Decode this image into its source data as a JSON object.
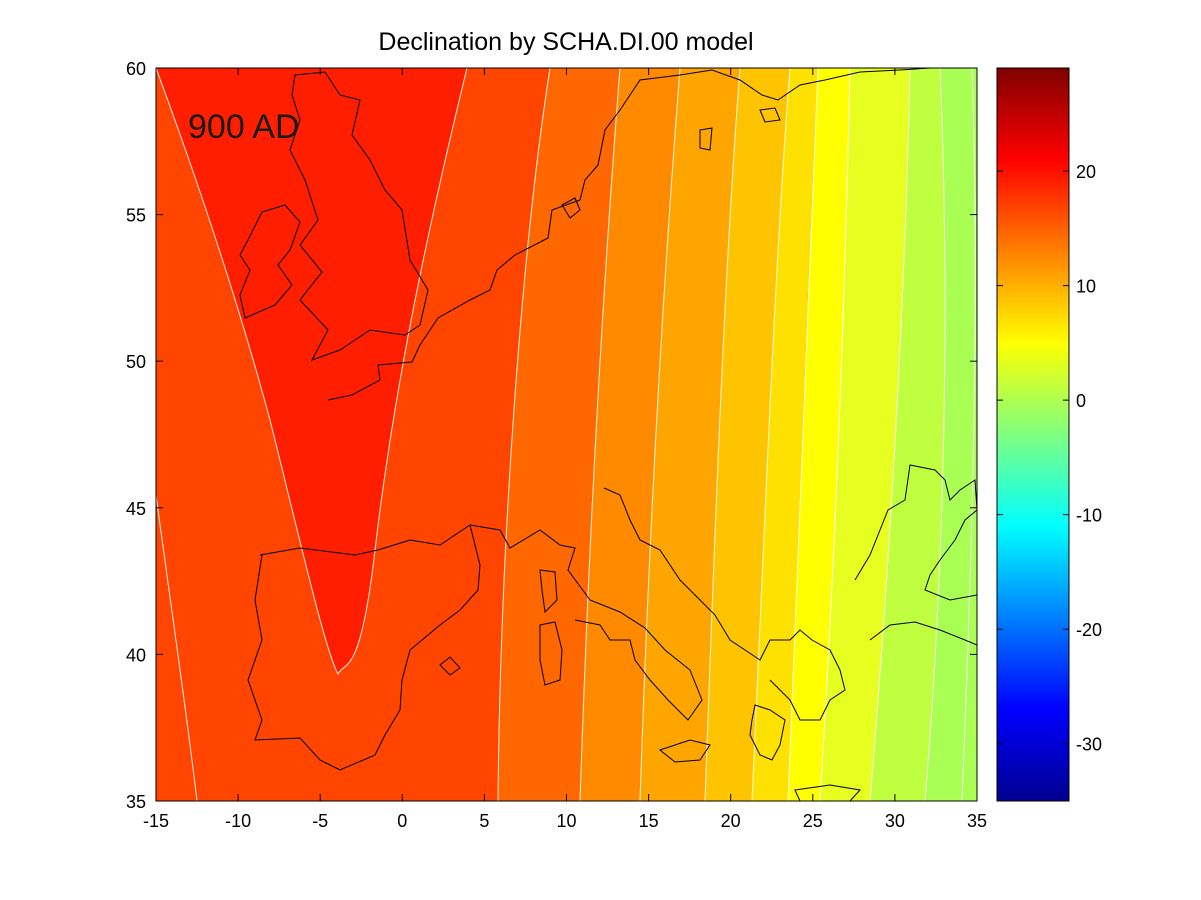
{
  "chart_data": {
    "type": "contour map",
    "title": "Declination by SCHA.DI.00 model",
    "annotation": "900 AD",
    "xlim": [
      -15,
      35
    ],
    "ylim": [
      35,
      60
    ],
    "x_ticks": [
      -15,
      -10,
      -5,
      0,
      5,
      10,
      15,
      20,
      25,
      30,
      35
    ],
    "y_ticks": [
      35,
      40,
      45,
      50,
      55,
      60
    ],
    "colorbar": {
      "range": [
        -35,
        29
      ],
      "ticks": [
        20,
        10,
        0,
        -10,
        -20,
        -30
      ],
      "colormap": "jet"
    },
    "field_bands": [
      {
        "name": "band-20-25",
        "value": 22
      },
      {
        "name": "band-17-20",
        "value": 18.5
      },
      {
        "name": "band-14-17",
        "value": 15.5
      },
      {
        "name": "band-11-14",
        "value": 12.5
      },
      {
        "name": "band-8-11",
        "value": 9.5
      },
      {
        "name": "band-5-8",
        "value": 6.5
      },
      {
        "name": "band-2-5",
        "value": 3.5
      },
      {
        "name": "band-0-2",
        "value": 1
      },
      {
        "name": "band-neg",
        "value": -1.5
      }
    ],
    "contour_lines_x": [
      -15,
      -8,
      2,
      6,
      10,
      13.8,
      16.6,
      20.4,
      22.9,
      24.9,
      27.6,
      30.7,
      33.6,
      35
    ],
    "v_curve_peak": [
      -4,
      39.3
    ],
    "coastline_color": "#000000",
    "contour_color": "#ffffff"
  }
}
